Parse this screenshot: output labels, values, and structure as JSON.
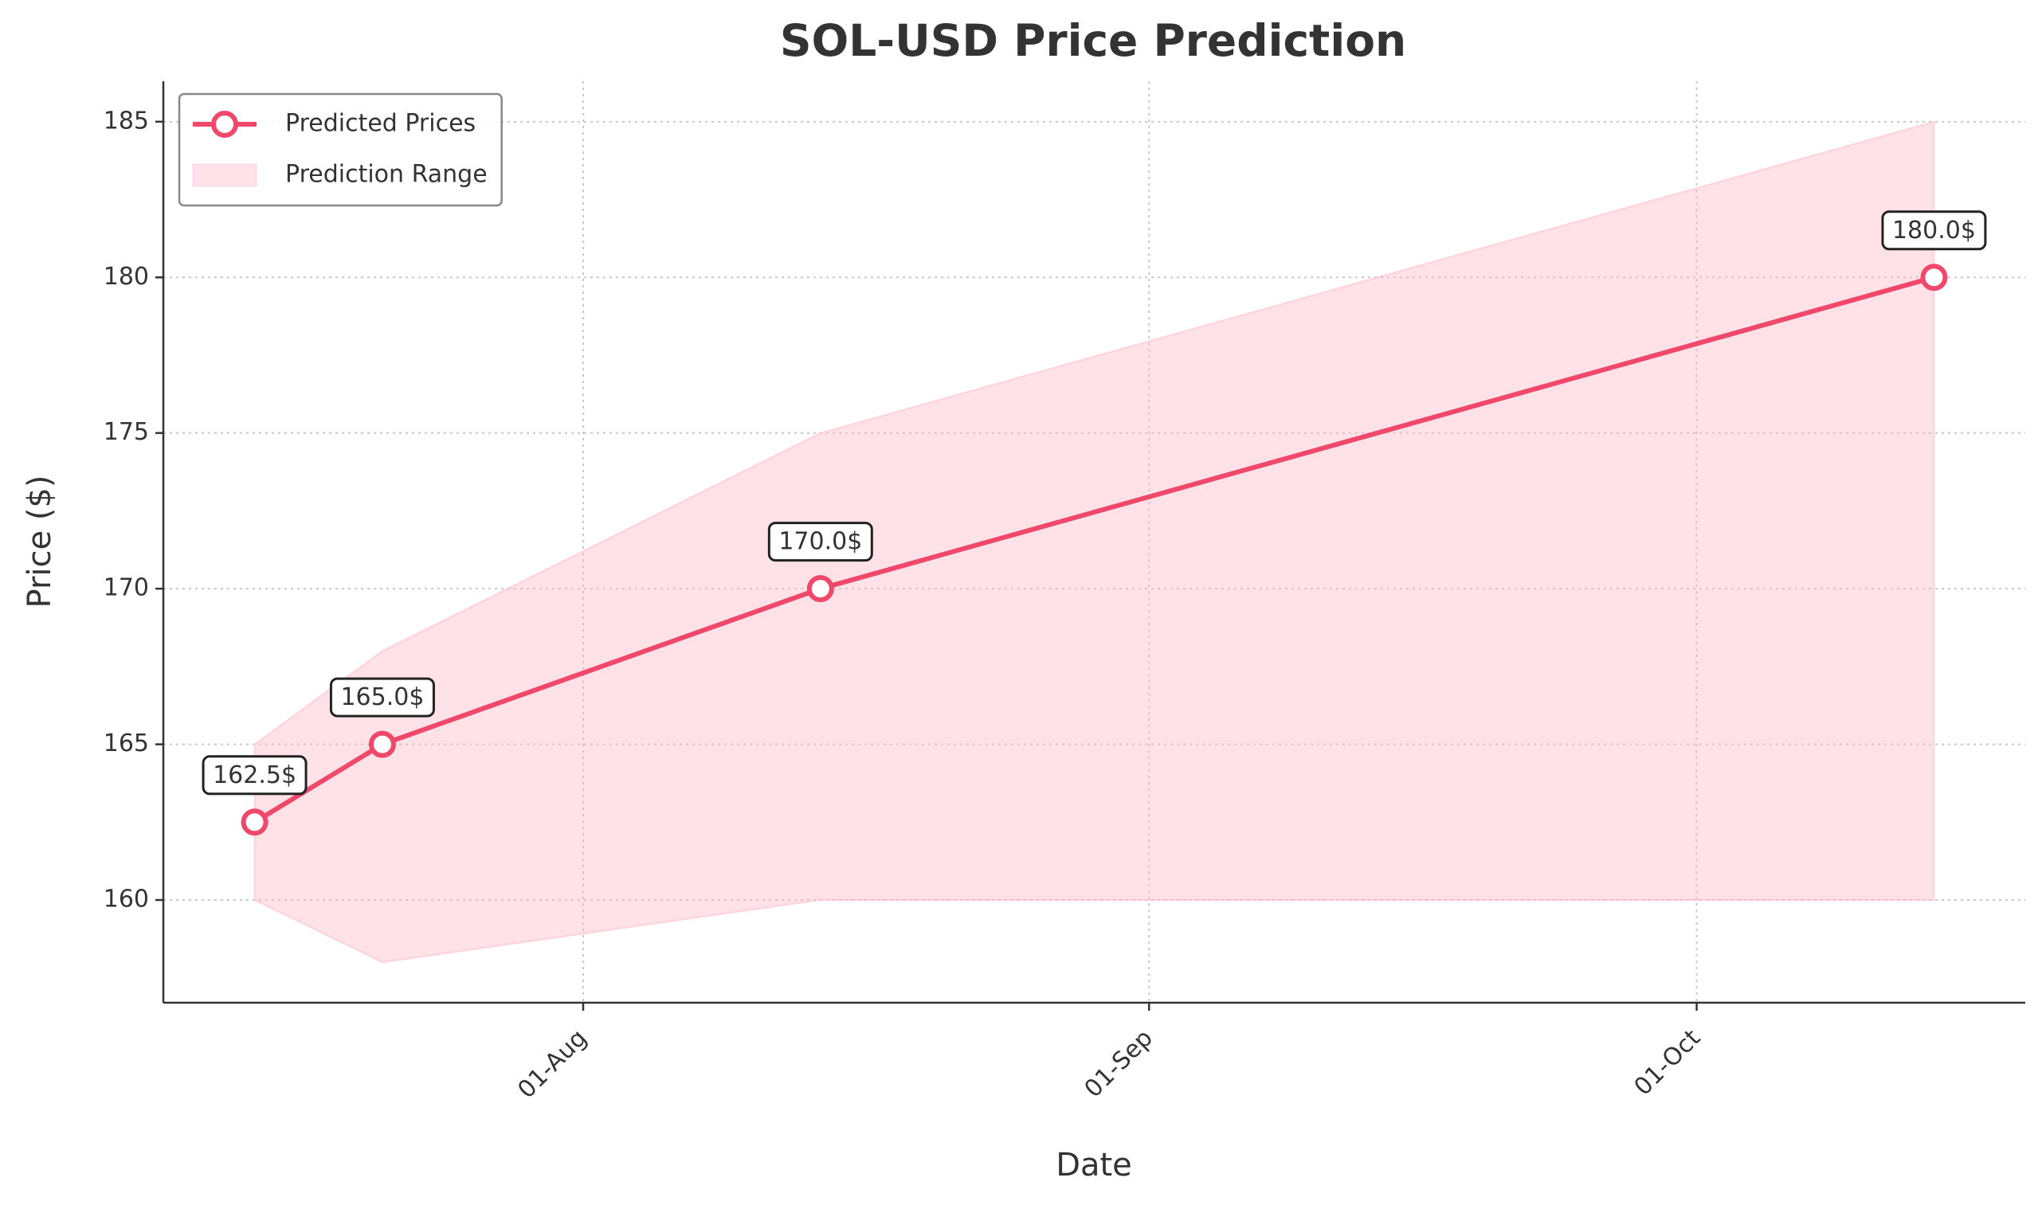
{
  "chart_data": {
    "type": "line",
    "title": "SOL-USD Price Prediction",
    "x_label": "Date",
    "y_label": "Price ($)",
    "x": [
      "07-14",
      "07-21",
      "08-14",
      "10-14"
    ],
    "series": [
      {
        "name": "Predicted Prices",
        "color": "#f0486a",
        "values": [
          162.5,
          165,
          170,
          180
        ],
        "value_labels": [
          "162.5$",
          "165.0$",
          "170.0$",
          "180.0$"
        ]
      }
    ],
    "band": {
      "name": "Prediction Range",
      "color": "#ffb6c6",
      "lower": [
        160,
        158,
        160,
        160
      ],
      "upper": [
        165,
        168,
        175,
        185
      ]
    },
    "xlim": [
      "07-09",
      "10-19"
    ],
    "xticks": [
      {
        "value": "08-01",
        "label": "01-Aug"
      },
      {
        "value": "09-01",
        "label": "01-Sep"
      },
      {
        "value": "10-01",
        "label": "01-Oct"
      }
    ],
    "ylim": [
      156.7,
      186.3
    ],
    "yticks": [
      160,
      165,
      170,
      175,
      180,
      185
    ],
    "grid": true,
    "legend": "upper left"
  }
}
